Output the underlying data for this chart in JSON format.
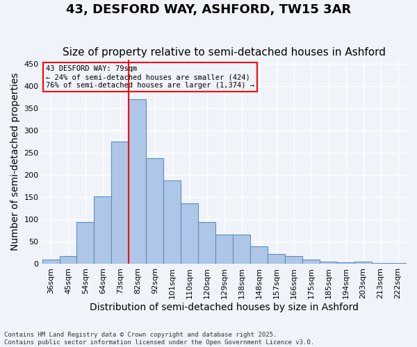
{
  "title": "43, DESFORD WAY, ASHFORD, TW15 3AR",
  "subtitle": "Size of property relative to semi-detached houses in Ashford",
  "xlabel": "Distribution of semi-detached houses by size in Ashford",
  "ylabel": "Number of semi-detached properties",
  "categories": [
    "36sqm",
    "45sqm",
    "54sqm",
    "64sqm",
    "73sqm",
    "82sqm",
    "92sqm",
    "101sqm",
    "110sqm",
    "120sqm",
    "129sqm",
    "138sqm",
    "148sqm",
    "157sqm",
    "166sqm",
    "175sqm",
    "185sqm",
    "194sqm",
    "203sqm",
    "213sqm",
    "222sqm"
  ],
  "values": [
    10,
    18,
    95,
    152,
    275,
    370,
    238,
    188,
    136,
    95,
    67,
    67,
    40,
    22,
    18,
    10,
    5,
    4,
    5,
    3,
    2
  ],
  "bar_color": "#aec6e8",
  "bar_edge_color": "#5a8fc0",
  "vline_x": 4.5,
  "vline_color": "red",
  "annotation_title": "43 DESFORD WAY: 79sqm",
  "annotation_line1": "← 24% of semi-detached houses are smaller (424)",
  "annotation_line2": "76% of semi-detached houses are larger (1,374) →",
  "annotation_box_color": "red",
  "ylim": [
    0,
    460
  ],
  "yticks": [
    0,
    50,
    100,
    150,
    200,
    250,
    300,
    350,
    400,
    450
  ],
  "footer": "Contains HM Land Registry data © Crown copyright and database right 2025.\nContains public sector information licensed under the Open Government Licence v3.0.",
  "bg_color": "#f0f4fa",
  "grid_color": "#ffffff",
  "title_fontsize": 13,
  "subtitle_fontsize": 11,
  "tick_fontsize": 8,
  "ylabel_fontsize": 10,
  "xlabel_fontsize": 10
}
